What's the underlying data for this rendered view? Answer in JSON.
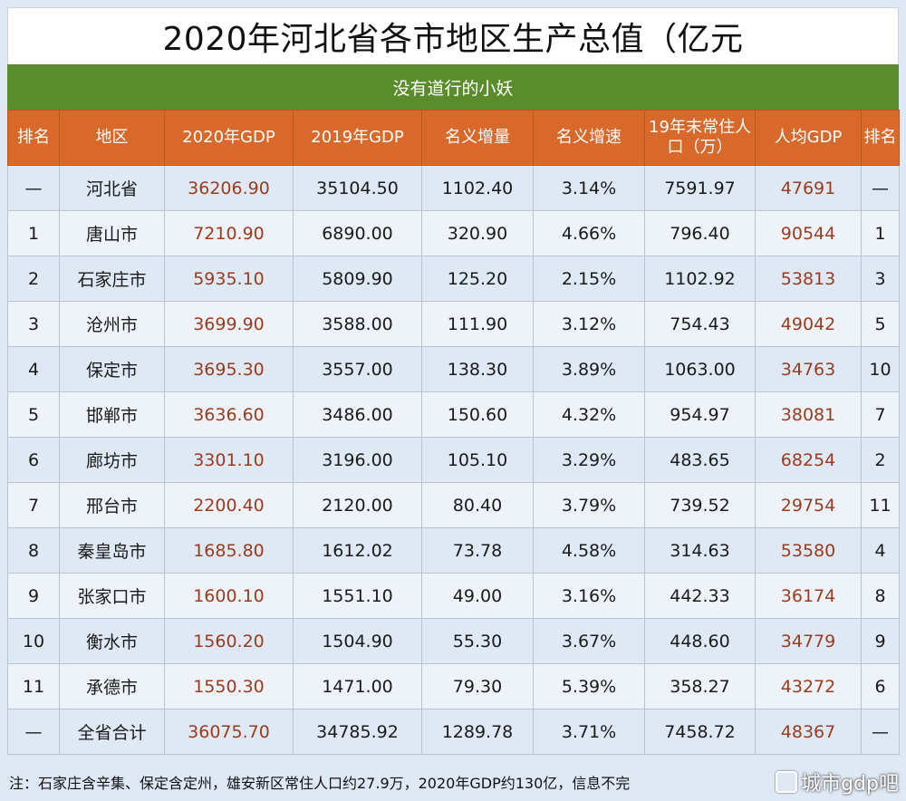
{
  "title": "2020年河北省各市地区生产总值（亿元",
  "subtitle": "没有道行的小妖",
  "headers": [
    "排名",
    "地区",
    "2020年GDP",
    "2019年GDP",
    "名义增量",
    "名义增速",
    "19年末常住人口（万）",
    "人均GDP",
    "排名"
  ],
  "rows": [
    [
      "—",
      "河北省",
      "36206.90",
      "35104.50",
      "1102.40",
      "3.14%",
      "7591.97",
      "47691",
      "—"
    ],
    [
      "1",
      "唐山市",
      "7210.90",
      "6890.00",
      "320.90",
      "4.66%",
      "796.40",
      "90544",
      "1"
    ],
    [
      "2",
      "石家庄市",
      "5935.10",
      "5809.90",
      "125.20",
      "2.15%",
      "1102.92",
      "53813",
      "3"
    ],
    [
      "3",
      "沧州市",
      "3699.90",
      "3588.00",
      "111.90",
      "3.12%",
      "754.43",
      "49042",
      "5"
    ],
    [
      "4",
      "保定市",
      "3695.30",
      "3557.00",
      "138.30",
      "3.89%",
      "1063.00",
      "34763",
      "10"
    ],
    [
      "5",
      "邯郸市",
      "3636.60",
      "3486.00",
      "150.60",
      "4.32%",
      "954.97",
      "38081",
      "7"
    ],
    [
      "6",
      "廊坊市",
      "3301.10",
      "3196.00",
      "105.10",
      "3.29%",
      "483.65",
      "68254",
      "2"
    ],
    [
      "7",
      "邢台市",
      "2200.40",
      "2120.00",
      "80.40",
      "3.79%",
      "739.52",
      "29754",
      "11"
    ],
    [
      "8",
      "秦皇岛市",
      "1685.80",
      "1612.02",
      "73.78",
      "4.58%",
      "314.63",
      "53580",
      "4"
    ],
    [
      "9",
      "张家口市",
      "1600.10",
      "1551.10",
      "49.00",
      "3.16%",
      "442.33",
      "36174",
      "8"
    ],
    [
      "10",
      "衡水市",
      "1560.20",
      "1504.90",
      "55.30",
      "3.67%",
      "448.60",
      "34779",
      "9"
    ],
    [
      "11",
      "承德市",
      "1550.30",
      "1471.00",
      "79.30",
      "5.39%",
      "358.27",
      "43272",
      "6"
    ],
    [
      "—",
      "全省合计",
      "36075.70",
      "34785.92",
      "1289.78",
      "3.71%",
      "7458.72",
      "48367",
      "—"
    ]
  ],
  "footnote": "注：石家庄含辛集、保定含定州，雄安新区常住人口约27.9万，2020年GDP约130亿，信息不完",
  "watermark": "城市gdp吧"
}
